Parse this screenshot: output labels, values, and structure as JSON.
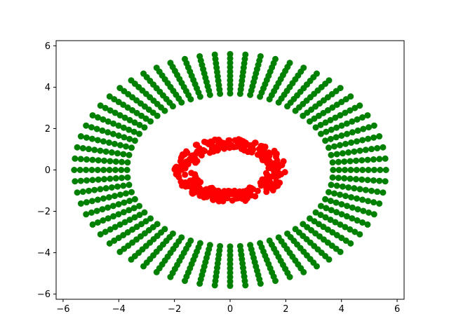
{
  "chart_data": {
    "type": "scatter",
    "title": "",
    "xlabel": "",
    "ylabel": "",
    "xlim": [
      -6.25,
      6.25
    ],
    "ylim": [
      -6.25,
      6.25
    ],
    "x_ticks": [
      -6,
      -4,
      -2,
      0,
      2,
      4,
      6
    ],
    "y_ticks": [
      -6,
      -4,
      -2,
      0,
      2,
      4,
      6
    ],
    "x_tick_labels": [
      "−6",
      "−4",
      "−2",
      "0",
      "2",
      "4",
      "6"
    ],
    "y_tick_labels": [
      "−6",
      "−4",
      "−2",
      "0",
      "2",
      "4",
      "6"
    ],
    "grid": false,
    "legend": "none",
    "series": [
      {
        "color": "#008000",
        "shape": "ring of radial strokes",
        "rays": 64,
        "radius_min": 3.7,
        "radius_max": 5.6,
        "points_per_ray": 10
      },
      {
        "color": "#ff0000",
        "shape": "ring band",
        "center": [
          0,
          0
        ],
        "radius_min": 1.0,
        "radius_max": 1.55,
        "x_radius_max": 2.0,
        "points": 320
      }
    ]
  }
}
